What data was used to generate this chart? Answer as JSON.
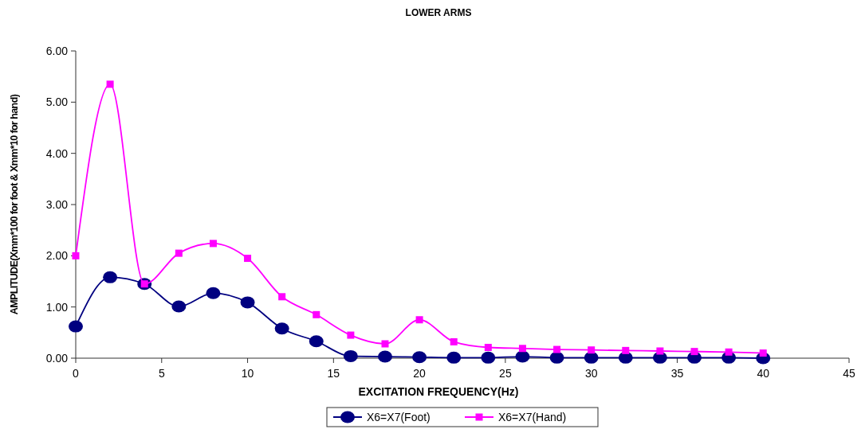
{
  "chart_data": {
    "type": "line",
    "title": "LOWER ARMS",
    "xlabel": "EXCITATION  FREQUENCY(Hz)",
    "ylabel": "AMPLITUDE(Xmm*100 for foot & Xmm*10 for hand)",
    "x": [
      0,
      2,
      4,
      6,
      8,
      10,
      12,
      14,
      16,
      18,
      20,
      22,
      24,
      26,
      28,
      30,
      32,
      34,
      36,
      38,
      40
    ],
    "series": [
      {
        "name": "X6=X7(Foot)",
        "color": "#000080",
        "marker": "circle",
        "values": [
          0.62,
          1.58,
          1.45,
          1.01,
          1.27,
          1.09,
          0.58,
          0.33,
          0.04,
          0.03,
          0.02,
          0.01,
          0.01,
          0.03,
          0.01,
          0.01,
          0.01,
          0.01,
          0.01,
          0.01,
          0.0
        ]
      },
      {
        "name": "X6=X7(Hand)",
        "color": "#ff00ff",
        "marker": "square",
        "values": [
          2.0,
          5.35,
          1.45,
          2.05,
          2.24,
          1.95,
          1.2,
          0.85,
          0.45,
          0.28,
          0.75,
          0.32,
          0.21,
          0.19,
          0.17,
          0.16,
          0.15,
          0.14,
          0.13,
          0.12,
          0.1
        ]
      }
    ],
    "xlim": [
      0,
      45
    ],
    "xticks": [
      0,
      5,
      10,
      15,
      20,
      25,
      30,
      35,
      40,
      45
    ],
    "ylim": [
      0,
      6
    ],
    "yticks": [
      {
        "value": 0,
        "label": "0.00"
      },
      {
        "value": 1,
        "label": "1.00"
      },
      {
        "value": 2,
        "label": "2.00"
      },
      {
        "value": 3,
        "label": "3.00"
      },
      {
        "value": 4,
        "label": "4.00"
      },
      {
        "value": 5,
        "label": "5.00"
      },
      {
        "value": 6,
        "label": "6.00"
      }
    ],
    "grid": false,
    "legend": "bottom"
  }
}
